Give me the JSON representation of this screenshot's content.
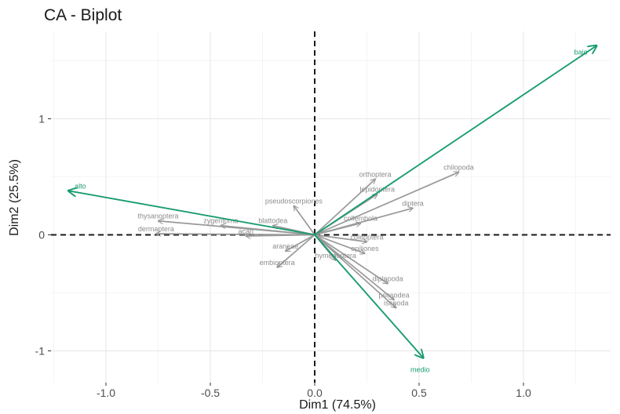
{
  "chart_data": {
    "type": "scatter",
    "title": "CA - Biplot",
    "xlabel": "Dim1 (74.5%)",
    "ylabel": "Dim2 (25.5%)",
    "xlim": [
      -1.25,
      1.42
    ],
    "ylim": [
      -1.22,
      1.72
    ],
    "x_ticks": [
      -1.0,
      -0.5,
      0.0,
      0.5,
      1.0
    ],
    "x_tick_labels": [
      "-1.0",
      "-0.5",
      "0.0",
      "0.5",
      "1.0"
    ],
    "y_ticks": [
      -1,
      0,
      1
    ],
    "y_tick_labels": [
      "-1",
      "0",
      "1"
    ],
    "grid": true,
    "reference_lines": "dashed lines at x=0 and y=0",
    "rows": [
      {
        "label": "chilopoda",
        "x": 0.69,
        "y": 0.54
      },
      {
        "label": "orthoptera",
        "x": 0.29,
        "y": 0.48
      },
      {
        "label": "lepidoptera",
        "x": 0.3,
        "y": 0.35
      },
      {
        "label": "diptera",
        "x": 0.47,
        "y": 0.23
      },
      {
        "label": "collembola",
        "x": 0.22,
        "y": 0.1
      },
      {
        "label": "coleoptera",
        "x": 0.25,
        "y": -0.06
      },
      {
        "label": "opiliones",
        "x": 0.24,
        "y": -0.16
      },
      {
        "label": "diplopoda",
        "x": 0.35,
        "y": -0.42
      },
      {
        "label": "psocodea",
        "x": 0.38,
        "y": -0.56
      },
      {
        "label": "isopoda",
        "x": 0.39,
        "y": -0.63
      },
      {
        "label": "hymenoptera",
        "x": 0.1,
        "y": -0.22
      },
      {
        "label": "araneae",
        "x": -0.14,
        "y": -0.14
      },
      {
        "label": "embioptera",
        "x": -0.18,
        "y": -0.28
      },
      {
        "label": "acari",
        "x": -0.33,
        "y": -0.01
      },
      {
        "label": "pseudoscorpiones",
        "x": -0.1,
        "y": 0.25
      },
      {
        "label": "blattodea",
        "x": -0.2,
        "y": 0.08
      },
      {
        "label": "zygentoma",
        "x": -0.45,
        "y": 0.08
      },
      {
        "label": "thysanoptera",
        "x": -0.75,
        "y": 0.12
      },
      {
        "label": "dermaptera",
        "x": -0.76,
        "y": 0.01
      }
    ],
    "columns": [
      {
        "label": "bajo",
        "x": 1.35,
        "y": 1.63
      },
      {
        "label": "alto",
        "x": -1.18,
        "y": 0.38
      },
      {
        "label": "medio",
        "x": 0.52,
        "y": -1.06
      }
    ],
    "colors": {
      "rows": "#999999",
      "columns": "#1a9c6f"
    }
  }
}
